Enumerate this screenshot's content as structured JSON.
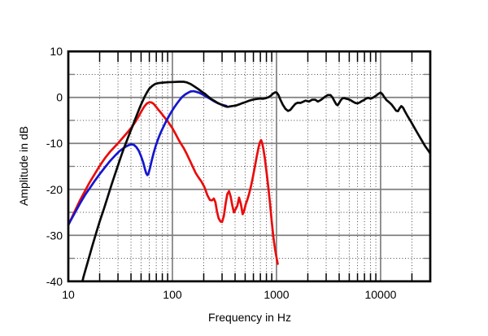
{
  "chart_data": {
    "type": "line",
    "title": "",
    "xlabel": "Frequency in Hz",
    "ylabel": "Amplitude in dB",
    "x_scale": "log",
    "x_range": [
      10,
      30000
    ],
    "y_range": [
      -40,
      10
    ],
    "grid": {
      "major_color": "#7f7f7f",
      "minor_color": "#474747",
      "frame_color": "#000000",
      "background": "#ffffff"
    },
    "x_major_gridlines": [
      100,
      1000,
      10000
    ],
    "x_minor_gridlines": [
      20,
      30,
      40,
      50,
      60,
      70,
      80,
      90,
      200,
      300,
      400,
      500,
      600,
      700,
      800,
      900,
      2000,
      3000,
      4000,
      5000,
      6000,
      7000,
      8000,
      9000,
      20000
    ],
    "y_major_gridlines": [
      0,
      -10,
      -20,
      -30
    ],
    "y_minor_gridlines": [
      5,
      -5,
      -15,
      -25,
      -35
    ],
    "x_tick_labels": [
      {
        "v": 10,
        "t": "10"
      },
      {
        "v": 100,
        "t": "100"
      },
      {
        "v": 1000,
        "t": "1000"
      },
      {
        "v": 10000,
        "t": "10000"
      }
    ],
    "y_tick_labels": [
      {
        "v": 10,
        "t": "10"
      },
      {
        "v": 0,
        "t": "0"
      },
      {
        "v": -10,
        "t": "-10"
      },
      {
        "v": -20,
        "t": "-20"
      },
      {
        "v": -30,
        "t": "-30"
      },
      {
        "v": -40,
        "t": "-40"
      }
    ],
    "legend": "none",
    "series": [
      {
        "name": "red-curve",
        "color": "#ea0c0c",
        "points": [
          [
            10,
            -27.8
          ],
          [
            11.5,
            -24.8
          ],
          [
            13,
            -22.3
          ],
          [
            14.5,
            -20.3
          ],
          [
            16,
            -18.5
          ],
          [
            18,
            -16.6
          ],
          [
            20,
            -14.9
          ],
          [
            22.5,
            -13.2
          ],
          [
            25,
            -11.9
          ],
          [
            28,
            -10.7
          ],
          [
            31,
            -9.6
          ],
          [
            34.5,
            -8.4
          ],
          [
            38,
            -7.3
          ],
          [
            41.5,
            -6.2
          ],
          [
            45,
            -5.0
          ],
          [
            48,
            -3.9
          ],
          [
            51,
            -2.8
          ],
          [
            54,
            -1.9
          ],
          [
            57,
            -1.3
          ],
          [
            60,
            -1.05
          ],
          [
            63,
            -1.1
          ],
          [
            66,
            -1.4
          ],
          [
            70,
            -2.1
          ],
          [
            74,
            -2.8
          ],
          [
            78,
            -3.4
          ],
          [
            83,
            -4.2
          ],
          [
            88,
            -4.9
          ],
          [
            94,
            -5.8
          ],
          [
            100,
            -6.7
          ],
          [
            107,
            -7.9
          ],
          [
            114,
            -9.1
          ],
          [
            121,
            -10.1
          ],
          [
            129,
            -11.1
          ],
          [
            138,
            -12.4
          ],
          [
            147,
            -13.7
          ],
          [
            157,
            -15.1
          ],
          [
            167,
            -16.4
          ],
          [
            178,
            -17.4
          ],
          [
            190,
            -18.3
          ],
          [
            203,
            -19.5
          ],
          [
            217,
            -21.3
          ],
          [
            229,
            -22.3
          ],
          [
            240,
            -22.4
          ],
          [
            250,
            -22.0
          ],
          [
            259,
            -22.8
          ],
          [
            268,
            -24.8
          ],
          [
            278,
            -26.3
          ],
          [
            290,
            -27.0
          ],
          [
            300,
            -27.1
          ],
          [
            312,
            -25.8
          ],
          [
            325,
            -23.0
          ],
          [
            337,
            -21.0
          ],
          [
            350,
            -20.4
          ],
          [
            363,
            -21.6
          ],
          [
            377,
            -23.6
          ],
          [
            390,
            -25.0
          ],
          [
            405,
            -24.3
          ],
          [
            420,
            -23.6
          ],
          [
            437,
            -21.8
          ],
          [
            455,
            -23.2
          ],
          [
            473,
            -25.4
          ],
          [
            490,
            -24.6
          ],
          [
            505,
            -23.3
          ],
          [
            522,
            -22.4
          ],
          [
            542,
            -21.2
          ],
          [
            565,
            -19.6
          ],
          [
            590,
            -17.6
          ],
          [
            618,
            -15.2
          ],
          [
            648,
            -12.7
          ],
          [
            675,
            -10.7
          ],
          [
            697,
            -9.6
          ],
          [
            712,
            -9.3
          ],
          [
            728,
            -9.9
          ],
          [
            748,
            -11.2
          ],
          [
            772,
            -13.2
          ],
          [
            800,
            -16.0
          ],
          [
            832,
            -19.3
          ],
          [
            866,
            -23.0
          ],
          [
            900,
            -27.0
          ],
          [
            935,
            -30.5
          ],
          [
            968,
            -33.0
          ],
          [
            1000,
            -34.8
          ],
          [
            1028,
            -36.2
          ]
        ]
      },
      {
        "name": "blue-curve",
        "color": "#1515d0",
        "points": [
          [
            10,
            -27.7
          ],
          [
            11.5,
            -25.2
          ],
          [
            13,
            -23.0
          ],
          [
            14.5,
            -21.2
          ],
          [
            16,
            -19.8
          ],
          [
            18,
            -18.1
          ],
          [
            20,
            -16.7
          ],
          [
            22.5,
            -15.2
          ],
          [
            25,
            -13.9
          ],
          [
            28,
            -12.7
          ],
          [
            31,
            -11.7
          ],
          [
            34,
            -11.0
          ],
          [
            37,
            -10.5
          ],
          [
            40,
            -10.2
          ],
          [
            42.5,
            -10.3
          ],
          [
            45,
            -10.8
          ],
          [
            47.5,
            -11.6
          ],
          [
            50,
            -12.8
          ],
          [
            52.5,
            -14.2
          ],
          [
            54.5,
            -15.6
          ],
          [
            56,
            -16.5
          ],
          [
            57.5,
            -16.9
          ],
          [
            59,
            -16.5
          ],
          [
            61,
            -15.3
          ],
          [
            63,
            -13.9
          ],
          [
            66,
            -12.1
          ],
          [
            69,
            -10.6
          ],
          [
            72.5,
            -9.2
          ],
          [
            76,
            -8.0
          ],
          [
            80,
            -6.9
          ],
          [
            84,
            -5.9
          ],
          [
            88,
            -5.0
          ],
          [
            93,
            -4.0
          ],
          [
            98,
            -3.1
          ],
          [
            104,
            -2.2
          ],
          [
            110,
            -1.4
          ],
          [
            117,
            -0.6
          ],
          [
            124,
            0.1
          ],
          [
            132,
            0.6
          ],
          [
            141,
            1.0
          ],
          [
            150,
            1.3
          ],
          [
            160,
            1.35
          ],
          [
            170,
            1.2
          ],
          [
            181,
            1.0
          ],
          [
            193,
            0.7
          ],
          [
            207,
            0.3
          ],
          [
            222,
            -0.1
          ],
          [
            238,
            -0.5
          ],
          [
            254,
            -0.9
          ],
          [
            270,
            -1.2
          ],
          [
            286,
            -1.45
          ],
          [
            302,
            -1.6
          ],
          [
            317,
            -1.75
          ],
          [
            330,
            -1.85
          ]
        ]
      },
      {
        "name": "black-curve",
        "color": "#0a0a0a",
        "points": [
          [
            13,
            -42
          ],
          [
            14,
            -39
          ],
          [
            15.5,
            -35.5
          ],
          [
            17,
            -32.3
          ],
          [
            18.5,
            -29.5
          ],
          [
            20,
            -27.0
          ],
          [
            22,
            -24.2
          ],
          [
            24,
            -21.5
          ],
          [
            26,
            -19.0
          ],
          [
            28,
            -16.8
          ],
          [
            30,
            -14.8
          ],
          [
            32,
            -12.9
          ],
          [
            34,
            -11.2
          ],
          [
            36.5,
            -9.4
          ],
          [
            39,
            -7.7
          ],
          [
            41.5,
            -6.2
          ],
          [
            44,
            -4.7
          ],
          [
            46.5,
            -3.3
          ],
          [
            49,
            -2.0
          ],
          [
            51.5,
            -0.9
          ],
          [
            54,
            0.1
          ],
          [
            57,
            1.1
          ],
          [
            60,
            1.9
          ],
          [
            64,
            2.5
          ],
          [
            68,
            2.9
          ],
          [
            73,
            3.1
          ],
          [
            80,
            3.2
          ],
          [
            90,
            3.3
          ],
          [
            102,
            3.35
          ],
          [
            115,
            3.4
          ],
          [
            128,
            3.4
          ],
          [
            138,
            3.25
          ],
          [
            150,
            2.9
          ],
          [
            162,
            2.4
          ],
          [
            175,
            1.9
          ],
          [
            190,
            1.3
          ],
          [
            205,
            0.8
          ],
          [
            220,
            0.2
          ],
          [
            237,
            -0.4
          ],
          [
            255,
            -0.8
          ],
          [
            272,
            -1.2
          ],
          [
            290,
            -1.5
          ],
          [
            310,
            -1.8
          ],
          [
            328,
            -2.0
          ],
          [
            342,
            -2.05
          ],
          [
            360,
            -1.95
          ],
          [
            385,
            -1.85
          ],
          [
            410,
            -1.75
          ],
          [
            440,
            -1.5
          ],
          [
            470,
            -1.25
          ],
          [
            500,
            -1.05
          ],
          [
            540,
            -0.75
          ],
          [
            580,
            -0.55
          ],
          [
            625,
            -0.4
          ],
          [
            665,
            -0.3
          ],
          [
            700,
            -0.25
          ],
          [
            740,
            -0.3
          ],
          [
            780,
            -0.2
          ],
          [
            830,
            0.0
          ],
          [
            880,
            0.35
          ],
          [
            930,
            0.85
          ],
          [
            970,
            1.1
          ],
          [
            1005,
            1.05
          ],
          [
            1045,
            0.5
          ],
          [
            1090,
            -0.5
          ],
          [
            1150,
            -1.6
          ],
          [
            1220,
            -2.5
          ],
          [
            1290,
            -2.95
          ],
          [
            1360,
            -2.7
          ],
          [
            1440,
            -2.0
          ],
          [
            1520,
            -1.4
          ],
          [
            1600,
            -1.15
          ],
          [
            1700,
            -1.2
          ],
          [
            1800,
            -0.95
          ],
          [
            1900,
            -0.7
          ],
          [
            2050,
            -0.9
          ],
          [
            2200,
            -0.5
          ],
          [
            2350,
            -0.5
          ],
          [
            2500,
            -0.9
          ],
          [
            2650,
            -0.6
          ],
          [
            2800,
            -0.2
          ],
          [
            2950,
            0.2
          ],
          [
            3100,
            0.5
          ],
          [
            3300,
            0.5
          ],
          [
            3450,
            0.0
          ],
          [
            3600,
            -0.8
          ],
          [
            3750,
            -1.5
          ],
          [
            3870,
            -1.7
          ],
          [
            4000,
            -1.2
          ],
          [
            4150,
            -0.6
          ],
          [
            4300,
            -0.2
          ],
          [
            4500,
            -0.15
          ],
          [
            4700,
            -0.3
          ],
          [
            4900,
            -0.4
          ],
          [
            5150,
            -0.6
          ],
          [
            5400,
            -0.9
          ],
          [
            5700,
            -1.2
          ],
          [
            6000,
            -1.3
          ],
          [
            6300,
            -1.1
          ],
          [
            6600,
            -0.8
          ],
          [
            6900,
            -0.6
          ],
          [
            7200,
            -0.3
          ],
          [
            7600,
            -0.1
          ],
          [
            8000,
            -0.3
          ],
          [
            8400,
            -0.1
          ],
          [
            8800,
            0.2
          ],
          [
            9200,
            0.5
          ],
          [
            9600,
            0.85
          ],
          [
            10000,
            1.05
          ],
          [
            10400,
            0.7
          ],
          [
            10900,
            0.0
          ],
          [
            11400,
            -0.6
          ],
          [
            12000,
            -1.0
          ],
          [
            12700,
            -1.5
          ],
          [
            13400,
            -2.2
          ],
          [
            14100,
            -2.9
          ],
          [
            14700,
            -3.0
          ],
          [
            15200,
            -2.4
          ],
          [
            15800,
            -1.9
          ],
          [
            16400,
            -2.2
          ],
          [
            17200,
            -3.1
          ],
          [
            18200,
            -4.1
          ],
          [
            19400,
            -5.1
          ],
          [
            21000,
            -6.5
          ],
          [
            22800,
            -7.9
          ],
          [
            24800,
            -9.3
          ],
          [
            26800,
            -10.6
          ],
          [
            28800,
            -11.6
          ],
          [
            30000,
            -12.2
          ]
        ]
      }
    ]
  }
}
